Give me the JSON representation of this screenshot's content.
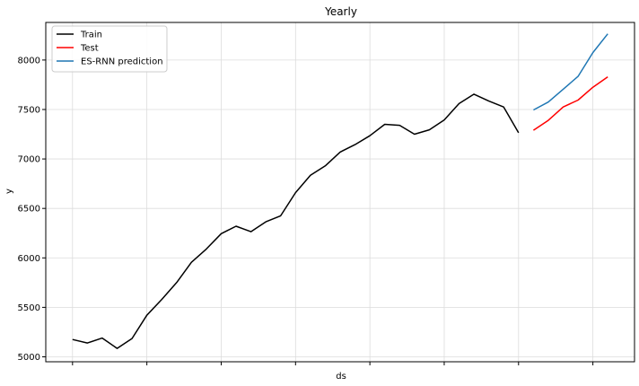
{
  "chart_data": {
    "type": "line",
    "title": "Yearly",
    "xlabel": "ds",
    "ylabel": "y",
    "ylim": [
      4950,
      8380
    ],
    "yticks": [
      5000,
      5500,
      6000,
      6500,
      7000,
      7500,
      8000
    ],
    "xlim": [
      -1.8,
      37.8
    ],
    "xticks": [
      0,
      5,
      10,
      15,
      20,
      25,
      30,
      35
    ],
    "grid": true,
    "legend_position": "top-left",
    "series": [
      {
        "name": "Train",
        "color": "#000000",
        "x": [
          0,
          1,
          2,
          3,
          4,
          5,
          6,
          7,
          8,
          9,
          10,
          11,
          12,
          13,
          14,
          15,
          16,
          17,
          18,
          19,
          20,
          21,
          22,
          23,
          24,
          25,
          26,
          27,
          28,
          29,
          30
        ],
        "values": [
          5175,
          5140,
          5190,
          5085,
          5185,
          5420,
          5580,
          5750,
          5955,
          6090,
          6245,
          6320,
          6265,
          6365,
          6425,
          6660,
          6835,
          6930,
          7070,
          7145,
          7235,
          7350,
          7340,
          7250,
          7295,
          7395,
          7560,
          7655,
          7585,
          7525,
          7265
        ]
      },
      {
        "name": "Test",
        "color": "#ff0000",
        "x": [
          31,
          32,
          33,
          34,
          35,
          36
        ],
        "values": [
          7290,
          7390,
          7525,
          7595,
          7725,
          7830
        ]
      },
      {
        "name": "ES-RNN prediction",
        "color": "#1f77b4",
        "x": [
          31,
          32,
          33,
          34,
          35,
          36
        ],
        "values": [
          7495,
          7575,
          7705,
          7835,
          8075,
          8265
        ]
      }
    ]
  }
}
